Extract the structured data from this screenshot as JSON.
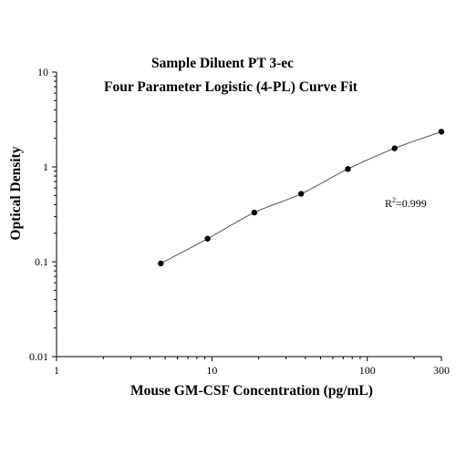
{
  "chart_data": {
    "type": "scatter",
    "title": "Sample Diluent PT 3-ec",
    "subtitle": "Four Parameter Logistic (4-PL) Curve Fit",
    "xlabel": "Mouse GM-CSF Concentration (pg/mL)",
    "ylabel": "Optical Density",
    "x_scale": "log",
    "y_scale": "log",
    "xlim": [
      1,
      300
    ],
    "ylim": [
      0.01,
      10
    ],
    "x_ticks": [
      "1",
      "10",
      "100",
      "300"
    ],
    "y_ticks": [
      "0.01",
      "0.1",
      "1",
      "10"
    ],
    "grid": false,
    "series": [
      {
        "x": [
          4.69,
          9.38,
          18.75,
          37.5,
          75,
          150,
          300
        ],
        "y": [
          0.096,
          0.175,
          0.33,
          0.52,
          0.95,
          1.57,
          2.35
        ]
      }
    ],
    "fit_curve": {
      "model": "4-PL"
    },
    "annotation": {
      "r2_label": "R",
      "r2_sup": "2",
      "r2_value": "=0.999"
    }
  }
}
